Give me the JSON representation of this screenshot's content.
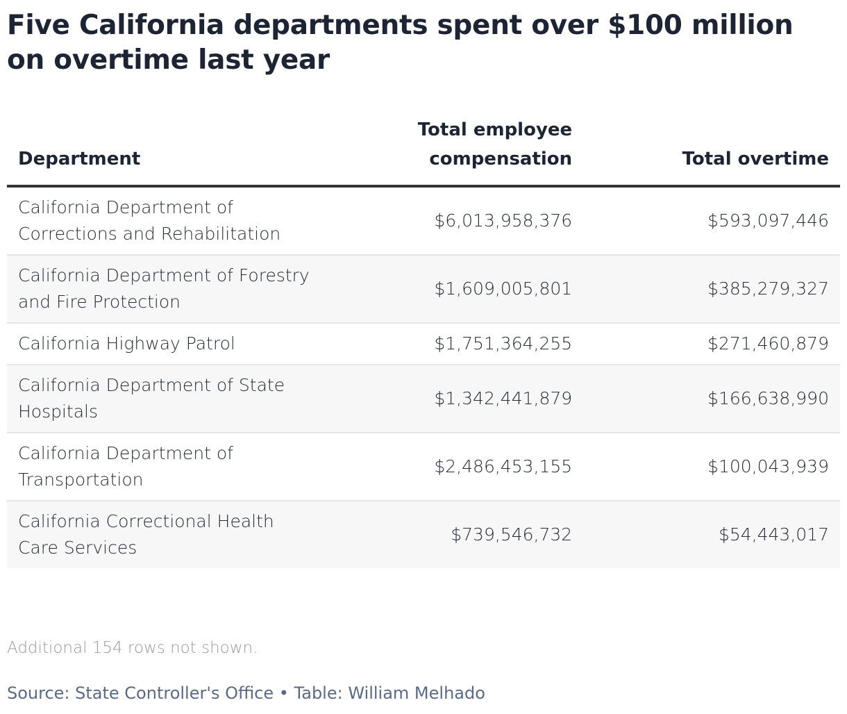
{
  "title": "Five California departments spent over $100 million on overtime last year",
  "chart_data": {
    "type": "table",
    "title": "Five California departments spent over $100 million on overtime last year",
    "columns": [
      "Department",
      "Total employee compensation",
      "Total overtime"
    ],
    "rows": [
      [
        "California Department of Corrections and Rehabilitation",
        "$6,013,958,376",
        "$593,097,446"
      ],
      [
        "California Department of Forestry and Fire Protection",
        "$1,609,005,801",
        "$385,279,327"
      ],
      [
        "California Highway Patrol",
        "$1,751,364,255",
        "$271,460,879"
      ],
      [
        "California Department of State Hospitals",
        "$1,342,441,879",
        "$166,638,990"
      ],
      [
        "California Department of Transportation",
        "$2,486,453,155",
        "$100,043,939"
      ],
      [
        "California Correctional Health Care Services",
        "$739,546,732",
        "$54,443,017"
      ]
    ]
  },
  "note": "Additional 154 rows not shown.",
  "source": "Source: State Controller's Office • Table: William Melhado",
  "colors": {
    "text": "#1d2433",
    "header_rule": "#333333",
    "alt_row": "#f7f7f7",
    "source": "#5a6a85",
    "note": "#9a9a9a"
  }
}
